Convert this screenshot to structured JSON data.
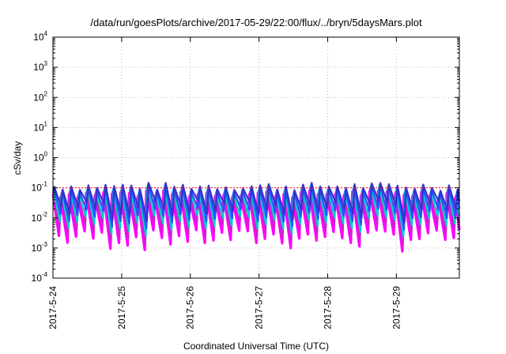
{
  "chart_data": {
    "type": "line",
    "title": "/data/run/goesPlots/archive/2017-05-29/22:00/flux/../bryn/5daysMars.plot",
    "xlabel": "Coordinated Universal Time (UTC)",
    "ylabel": "cSv/day",
    "yscale": "log",
    "ylim": [
      0.0001,
      10000
    ],
    "y_ticks": [
      {
        "base": "10",
        "exp": "-4",
        "value": 0.0001
      },
      {
        "base": "10",
        "exp": "-3",
        "value": 0.001
      },
      {
        "base": "10",
        "exp": "-2",
        "value": 0.01
      },
      {
        "base": "10",
        "exp": "-1",
        "value": 0.1
      },
      {
        "base": "10",
        "exp": "0",
        "value": 1
      },
      {
        "base": "10",
        "exp": "1",
        "value": 10
      },
      {
        "base": "10",
        "exp": "2",
        "value": 100
      },
      {
        "base": "10",
        "exp": "3",
        "value": 1000
      },
      {
        "base": "10",
        "exp": "4",
        "value": 10000
      }
    ],
    "xlim": [
      "2017-05-24 00:00",
      "2017-05-29 22:00"
    ],
    "x_ticks": [
      "2017-5-24",
      "2017-5-25",
      "2017-5-26",
      "2017-5-27",
      "2017-5-28",
      "2017-5-29"
    ],
    "grid": true,
    "reference_line": {
      "value": 0.1,
      "color": "#ff0000"
    },
    "series_colors": [
      "#ff00ff",
      "#cc22cc",
      "#00cccc",
      "#2255ff",
      "#3333cc"
    ],
    "cycles_per_day": 8,
    "cycle_peak_range": [
      0.08,
      0.15
    ],
    "cycle_trough_range": [
      0.0007,
      0.004
    ]
  }
}
